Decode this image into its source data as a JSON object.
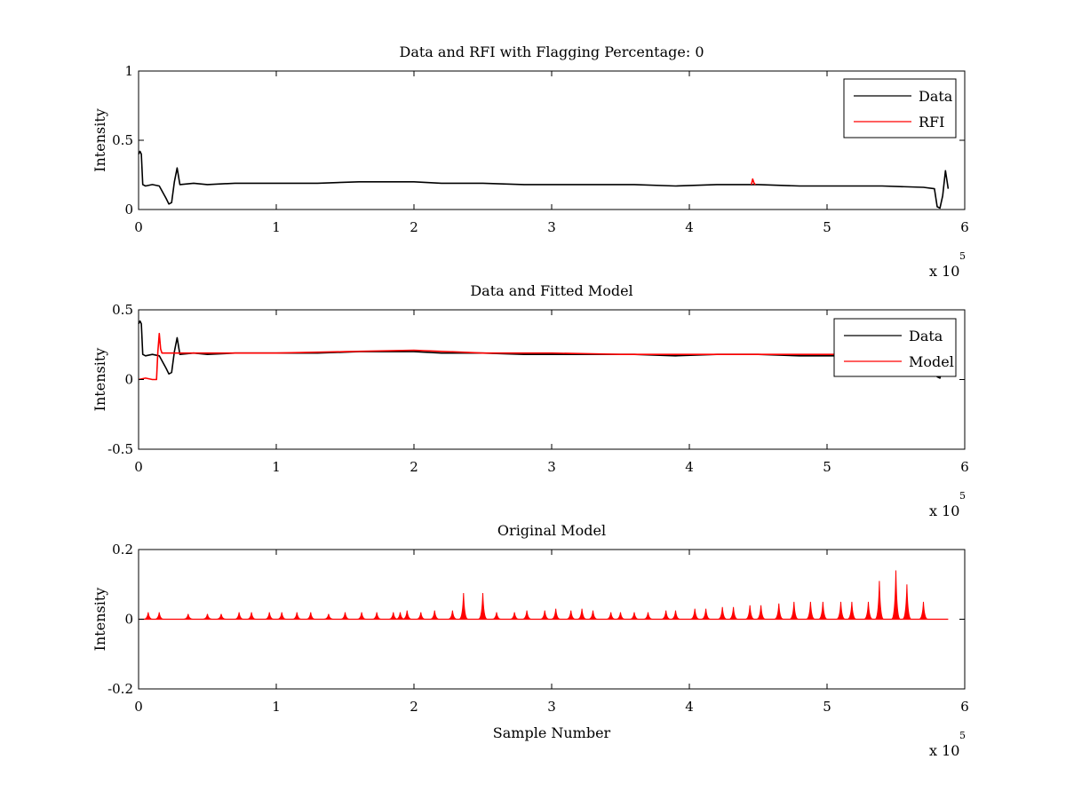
{
  "figure": {
    "colors": {
      "data": "#000000",
      "rfi": "#ff0000",
      "model": "#ff0000",
      "axes": "#000000",
      "background": "#ffffff"
    }
  },
  "chart_data": [
    {
      "type": "line",
      "title": "Data and RFI with Flagging Percentage: 0",
      "xlabel": "",
      "ylabel": "Intensity",
      "xlim": [
        0,
        6
      ],
      "ylim": [
        0,
        1
      ],
      "x_exponent": {
        "base": "x 10",
        "power": "5"
      },
      "xticks": [
        "0",
        "1",
        "2",
        "3",
        "4",
        "5",
        "6"
      ],
      "yticks": [
        "0",
        "0.5",
        "1"
      ],
      "xtick_values": [
        0,
        1,
        2,
        3,
        4,
        5,
        6
      ],
      "ytick_values": [
        0,
        0.5,
        1
      ],
      "grid": false,
      "legend": {
        "placement": "top-right",
        "entries": [
          {
            "label": "Data",
            "color": "#000000"
          },
          {
            "label": "RFI",
            "color": "#ff0000"
          }
        ]
      },
      "series": [
        {
          "name": "Data",
          "color": "#000000",
          "x": [
            0,
            0.01,
            0.02,
            0.03,
            0.05,
            0.1,
            0.15,
            0.2,
            0.22,
            0.24,
            0.26,
            0.28,
            0.3,
            0.4,
            0.5,
            0.7,
            1.0,
            1.3,
            1.6,
            1.9,
            2.0,
            2.2,
            2.5,
            2.8,
            3.0,
            3.3,
            3.6,
            3.9,
            4.2,
            4.5,
            4.8,
            5.1,
            5.4,
            5.7,
            5.78,
            5.8,
            5.82,
            5.84,
            5.86,
            5.88
          ],
          "y": [
            0.4,
            0.42,
            0.4,
            0.18,
            0.17,
            0.18,
            0.17,
            0.08,
            0.04,
            0.05,
            0.2,
            0.3,
            0.18,
            0.19,
            0.18,
            0.19,
            0.19,
            0.19,
            0.2,
            0.2,
            0.2,
            0.19,
            0.19,
            0.18,
            0.18,
            0.18,
            0.18,
            0.17,
            0.18,
            0.18,
            0.17,
            0.17,
            0.17,
            0.16,
            0.15,
            0.02,
            0.01,
            0.1,
            0.28,
            0.15
          ]
        },
        {
          "name": "RFI",
          "color": "#ff0000",
          "x": [
            4.45,
            4.46,
            4.47,
            4.48
          ],
          "y": [
            0.18,
            0.22,
            0.19,
            0.18
          ]
        }
      ]
    },
    {
      "type": "line",
      "title": "Data and Fitted Model",
      "xlabel": "",
      "ylabel": "Intensity",
      "xlim": [
        0,
        6
      ],
      "ylim": [
        -0.5,
        0.5
      ],
      "x_exponent": {
        "base": "x 10",
        "power": "5"
      },
      "xticks": [
        "0",
        "1",
        "2",
        "3",
        "4",
        "5",
        "6"
      ],
      "yticks": [
        "-0.5",
        "0",
        "0.5"
      ],
      "xtick_values": [
        0,
        1,
        2,
        3,
        4,
        5,
        6
      ],
      "ytick_values": [
        -0.5,
        0,
        0.5
      ],
      "grid": false,
      "legend": {
        "placement": "top-right",
        "entries": [
          {
            "label": "Data",
            "color": "#000000"
          },
          {
            "label": "Model",
            "color": "#ff0000"
          }
        ]
      },
      "series": [
        {
          "name": "Data",
          "color": "#000000",
          "x": [
            0,
            0.01,
            0.02,
            0.03,
            0.05,
            0.1,
            0.15,
            0.2,
            0.22,
            0.24,
            0.26,
            0.28,
            0.3,
            0.4,
            0.5,
            0.7,
            1.0,
            1.3,
            1.6,
            1.9,
            2.0,
            2.2,
            2.5,
            2.8,
            3.0,
            3.3,
            3.6,
            3.9,
            4.2,
            4.5,
            4.8,
            5.1,
            5.4,
            5.7,
            5.78,
            5.8,
            5.82,
            5.84,
            5.86,
            5.88
          ],
          "y": [
            0.4,
            0.42,
            0.4,
            0.18,
            0.17,
            0.18,
            0.17,
            0.08,
            0.04,
            0.05,
            0.2,
            0.3,
            0.18,
            0.19,
            0.18,
            0.19,
            0.19,
            0.19,
            0.2,
            0.2,
            0.2,
            0.19,
            0.19,
            0.18,
            0.18,
            0.18,
            0.18,
            0.17,
            0.18,
            0.18,
            0.17,
            0.17,
            0.17,
            0.16,
            0.15,
            0.02,
            0.01,
            0.1,
            0.28,
            0.15
          ]
        },
        {
          "name": "Model",
          "color": "#ff0000",
          "x": [
            0,
            0.05,
            0.1,
            0.13,
            0.14,
            0.15,
            0.16,
            0.17,
            0.2,
            0.3,
            0.5,
            1.0,
            1.5,
            2.0,
            2.5,
            3.0,
            3.5,
            4.0,
            4.5,
            5.0,
            5.2
          ],
          "y": [
            0.0,
            0.01,
            0.0,
            0.0,
            0.2,
            0.33,
            0.22,
            0.19,
            0.19,
            0.19,
            0.19,
            0.19,
            0.2,
            0.21,
            0.19,
            0.19,
            0.18,
            0.18,
            0.18,
            0.18,
            0.18
          ]
        }
      ]
    },
    {
      "type": "line",
      "title": "Original Model",
      "xlabel": "Sample Number",
      "ylabel": "Intensity",
      "xlim": [
        0,
        6
      ],
      "ylim": [
        -0.2,
        0.2
      ],
      "x_exponent": {
        "base": "x 10",
        "power": "5"
      },
      "xticks": [
        "0",
        "1",
        "2",
        "3",
        "4",
        "5",
        "6"
      ],
      "yticks": [
        "-0.2",
        "0",
        "0.2"
      ],
      "xtick_values": [
        0,
        1,
        2,
        3,
        4,
        5,
        6
      ],
      "ytick_values": [
        -0.2,
        0,
        0.2
      ],
      "grid": false,
      "series": [
        {
          "name": "Model",
          "color": "#ff0000",
          "baseline": 0.0,
          "x_end": 5.88,
          "spikes_x": [
            0.07,
            0.15,
            0.36,
            0.5,
            0.6,
            0.73,
            0.82,
            0.95,
            1.04,
            1.15,
            1.25,
            1.38,
            1.5,
            1.62,
            1.73,
            1.85,
            1.9,
            1.95,
            2.05,
            2.15,
            2.28,
            2.36,
            2.5,
            2.6,
            2.73,
            2.82,
            2.95,
            3.03,
            3.14,
            3.22,
            3.3,
            3.43,
            3.5,
            3.6,
            3.7,
            3.83,
            3.9,
            4.04,
            4.12,
            4.24,
            4.32,
            4.44,
            4.52,
            4.65,
            4.76,
            4.88,
            4.97,
            5.1,
            5.18,
            5.3,
            5.38,
            5.5,
            5.58,
            5.7
          ],
          "spikes_y": [
            0.02,
            0.02,
            0.015,
            0.015,
            0.015,
            0.02,
            0.02,
            0.02,
            0.02,
            0.02,
            0.02,
            0.015,
            0.02,
            0.02,
            0.02,
            0.02,
            0.02,
            0.025,
            0.02,
            0.025,
            0.025,
            0.075,
            0.075,
            0.02,
            0.02,
            0.025,
            0.025,
            0.03,
            0.025,
            0.03,
            0.025,
            0.02,
            0.02,
            0.02,
            0.02,
            0.025,
            0.025,
            0.03,
            0.03,
            0.035,
            0.035,
            0.04,
            0.04,
            0.045,
            0.05,
            0.05,
            0.05,
            0.05,
            0.05,
            0.05,
            0.11,
            0.14,
            0.1,
            0.05
          ]
        }
      ]
    }
  ]
}
